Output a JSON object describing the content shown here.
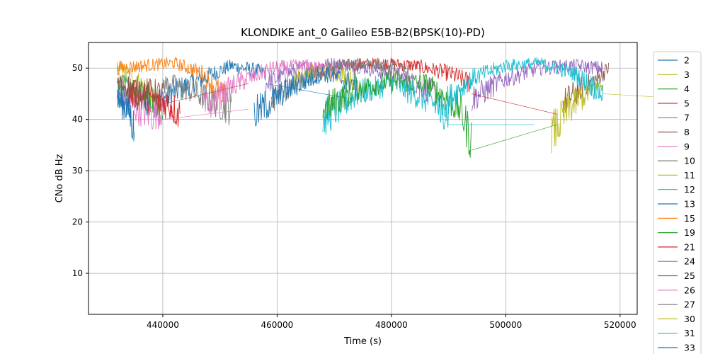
{
  "chart_data": {
    "type": "line",
    "title": "KLONDIKE ant_0 Galileo E5B-B2(BPSK(10)-PD)",
    "xlabel": "Time (s)",
    "ylabel": "CNo dB Hz",
    "xlim": [
      427000,
      523000
    ],
    "ylim": [
      2,
      55
    ],
    "xticks": [
      440000,
      460000,
      480000,
      500000,
      520000
    ],
    "yticks": [
      10,
      20,
      30,
      40,
      50
    ],
    "grid": true,
    "legend_position": "right-outside",
    "series": [
      {
        "name": "2",
        "color": "#1f77b4",
        "x": [
          432000,
          438000,
          445000,
          452000,
          458000
        ],
        "y": [
          45,
          43,
          47,
          50.5,
          49
        ]
      },
      {
        "name": "3",
        "color": "#bcbd22",
        "x": [
          432000,
          434000,
          436000,
          438000,
          439500
        ],
        "y": [
          50,
          49,
          47,
          45,
          40
        ]
      },
      {
        "name": "4",
        "color": "#2ca02c",
        "x": [
          432000,
          434000,
          436000,
          438000,
          440000
        ],
        "y": [
          47,
          46,
          45,
          44,
          43
        ]
      },
      {
        "name": "5",
        "color": "#d62728",
        "x": [
          466000,
          472000,
          478000,
          484000,
          490000,
          494000
        ],
        "y": [
          49,
          50.5,
          51,
          50.5,
          49,
          47
        ]
      },
      {
        "name": "7",
        "color": "#9467bd",
        "x": [
          458000,
          464000,
          470000,
          476000,
          482000,
          488000
        ],
        "y": [
          47,
          50,
          51,
          50,
          48,
          45
        ]
      },
      {
        "name": "8",
        "color": "#8c564b",
        "x": [
          510000,
          513000,
          516000,
          518000
        ],
        "y": [
          43,
          46,
          48,
          50
        ]
      },
      {
        "name": "9",
        "color": "#e377c2",
        "x": [
          432000,
          434000,
          436000,
          438000,
          440000
        ],
        "y": [
          44,
          43,
          42,
          41,
          42
        ]
      },
      {
        "name": "10",
        "color": "#7f7f7f",
        "x": [
          440000,
          444000,
          448000,
          452000
        ],
        "y": [
          47,
          46,
          44,
          42
        ]
      },
      {
        "name": "11",
        "color": "#bcbd22",
        "x": [
          463000,
          467000,
          471000,
          475000
        ],
        "y": [
          48,
          49.5,
          49,
          47
        ]
      },
      {
        "name": "12",
        "color": "#17becf",
        "x": [
          468000,
          474000,
          480000,
          486000,
          490000
        ],
        "y": [
          40,
          45,
          47,
          44,
          41
        ]
      },
      {
        "name": "13",
        "color": "#1f77b4",
        "x": [
          432000,
          434000,
          435000
        ],
        "y": [
          44,
          42,
          38
        ]
      },
      {
        "name": "15",
        "color": "#ff7f0e",
        "x": [
          432000,
          437000,
          442000,
          447000,
          451000
        ],
        "y": [
          50,
          50.5,
          51,
          49,
          44
        ]
      },
      {
        "name": "19",
        "color": "#2ca02c",
        "x": [
          468000,
          474000,
          480000,
          486000,
          492000,
          494000
        ],
        "y": [
          42,
          46,
          47.5,
          47,
          42,
          36
        ]
      },
      {
        "name": "21",
        "color": "#d62728",
        "x": [
          434000,
          438000,
          441000,
          443000
        ],
        "y": [
          45,
          44,
          43,
          41
        ]
      },
      {
        "name": "24",
        "color": "#9467bd",
        "x": [
          494000,
          500000,
          506000,
          512000,
          517000
        ],
        "y": [
          44,
          48,
          50,
          50.5,
          50
        ]
      },
      {
        "name": "25",
        "color": "#8c564b",
        "x": [
          432000,
          436000,
          440000
        ],
        "y": [
          47,
          46,
          45
        ]
      },
      {
        "name": "26",
        "color": "#e377c2",
        "x": [
          447000,
          453000,
          459000,
          465000,
          471000
        ],
        "y": [
          42,
          47,
          50,
          50.5,
          49
        ]
      },
      {
        "name": "27",
        "color": "#7f7f7f",
        "x": [
          459000,
          465000,
          471000,
          477000,
          483000
        ],
        "y": [
          44,
          48,
          50.5,
          51,
          49
        ]
      },
      {
        "name": "30",
        "color": "#bcbd22",
        "x": [
          508000,
          511000,
          514000,
          517000
        ],
        "y": [
          37,
          42,
          45,
          47
        ]
      },
      {
        "name": "31",
        "color": "#17becf",
        "x": [
          488000,
          494000,
          500000,
          506000,
          512000,
          517000
        ],
        "y": [
          42,
          48,
          50.5,
          51,
          49,
          45
        ]
      },
      {
        "name": "33",
        "color": "#1f77b4",
        "x": [
          456000,
          462000,
          468000,
          474000
        ],
        "y": [
          41,
          46,
          49,
          47
        ]
      }
    ]
  }
}
